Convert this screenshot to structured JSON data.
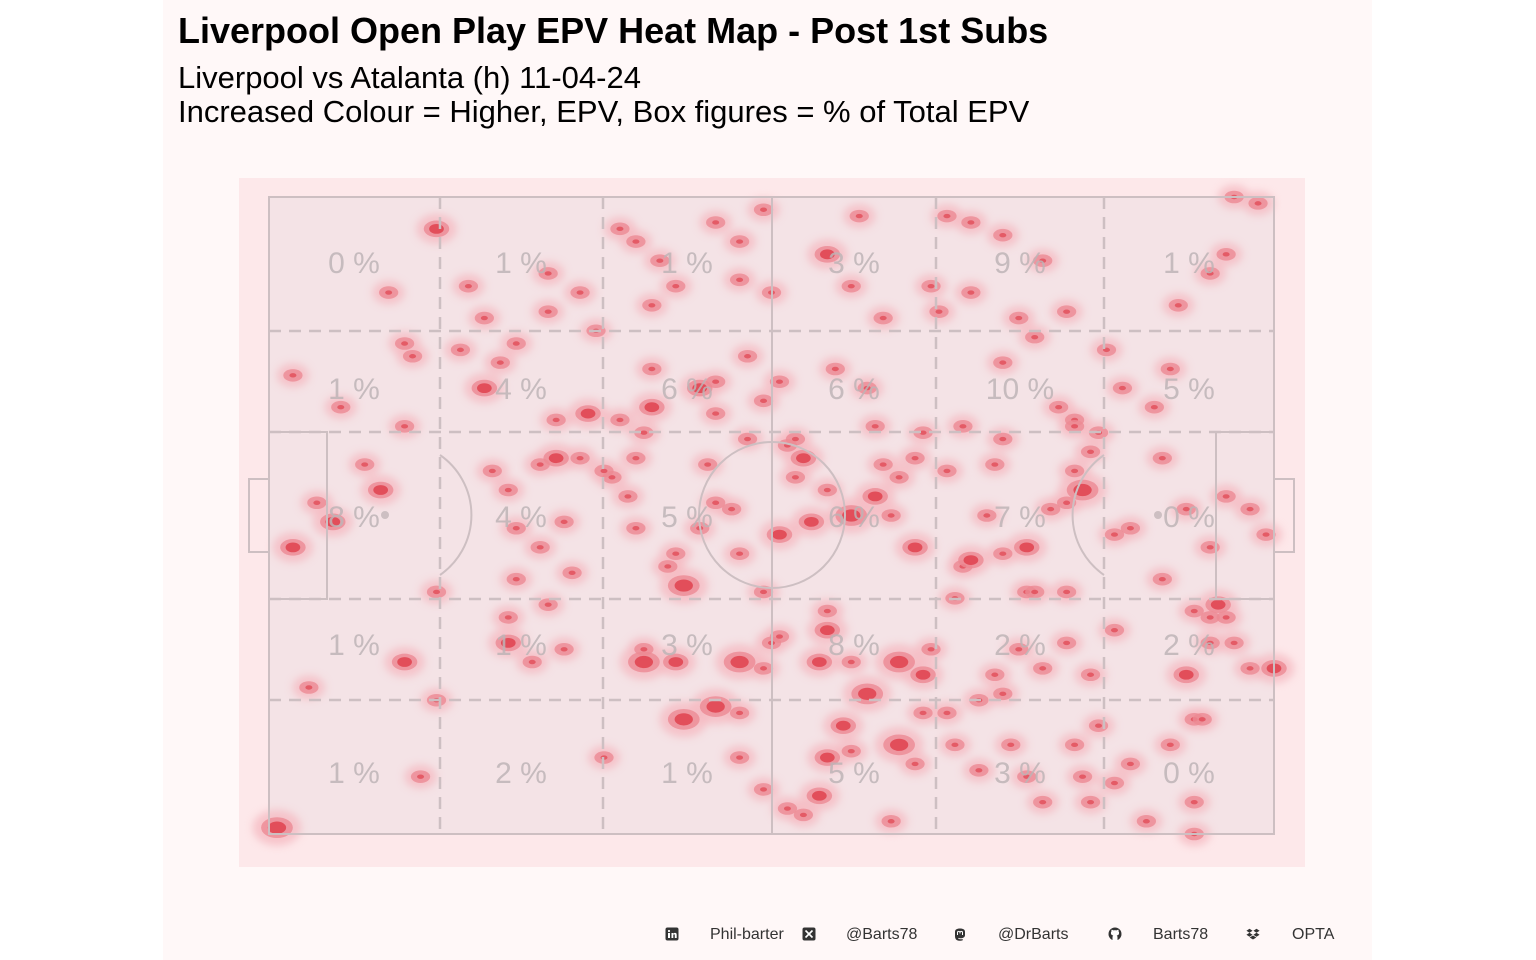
{
  "title": "Liverpool Open Play EPV Heat Map - Post 1st Subs",
  "subtitle_line1": "Liverpool vs Atalanta (h) 11-04-24",
  "subtitle_line2": "Increased Colour = Higher, EPV, Box figures = % of Total EPV",
  "colors": {
    "panel_bg": "#fff8f8",
    "pitch_bg": "#fde8ea",
    "zone_fill": "#f4e3e6",
    "lines": "#cdbfc2",
    "heat_low": "#f6b8c0",
    "heat_mid": "#ec8a93",
    "heat_high": "#e0424f",
    "label": "#bdb4b6"
  },
  "footer": {
    "linkedin_icon": "linkedin-icon",
    "linkedin": "Phil-barter",
    "x_icon": "x-icon",
    "x": "@Barts78",
    "mastodon_icon": "mastodon-icon",
    "mastodon": "@DrBarts",
    "github_icon": "github-icon",
    "github": "Barts78",
    "dropbox_icon": "dropbox-icon",
    "data_source": "OPTA"
  },
  "chart_data": {
    "type": "heatmap",
    "title": "Liverpool Open Play EPV Heat Map - Post 1st Subs",
    "value_unit": "% of Total EPV",
    "zone_columns": 6,
    "zone_rows": 5,
    "zone_labels": [
      [
        "0 %",
        "1 %",
        "1 %",
        "3 %",
        "9 %",
        "1 %"
      ],
      [
        "1 %",
        "4 %",
        "6 %",
        "6 %",
        "10 %",
        "5 %"
      ],
      [
        "8 %",
        "4 %",
        "5 %",
        "6 %",
        "7 %",
        "0 %"
      ],
      [
        "1 %",
        "1 %",
        "3 %",
        "8 %",
        "2 %",
        "2 %"
      ],
      [
        "1 %",
        "2 %",
        "1 %",
        "5 %",
        "3 %",
        "0 %"
      ]
    ],
    "zone_values": [
      [
        0,
        1,
        1,
        3,
        9,
        1
      ],
      [
        1,
        4,
        6,
        6,
        10,
        5
      ],
      [
        8,
        4,
        5,
        6,
        7,
        0
      ],
      [
        1,
        1,
        3,
        8,
        2,
        2
      ],
      [
        1,
        2,
        1,
        5,
        3,
        0
      ]
    ],
    "x_range": [
      0,
      100
    ],
    "y_range": [
      0,
      100
    ],
    "points": [
      [
        1,
        99,
        3
      ],
      [
        5,
        77,
        1
      ],
      [
        17,
        73,
        2
      ],
      [
        30,
        70,
        2
      ],
      [
        33,
        73,
        1
      ],
      [
        35,
        64,
        1
      ],
      [
        37,
        71,
        1
      ],
      [
        21,
        79,
        1
      ],
      [
        21,
        62,
        1
      ],
      [
        19,
        91,
        1
      ],
      [
        42,
        88,
        1
      ],
      [
        47,
        71,
        1
      ],
      [
        47,
        73,
        3
      ],
      [
        52,
        82,
        3
      ],
      [
        56,
        80,
        3
      ],
      [
        51,
        73,
        2
      ],
      [
        52,
        61,
        3
      ],
      [
        59,
        81,
        1
      ],
      [
        62,
        74,
        1
      ],
      [
        59,
        88,
        1
      ],
      [
        62,
        93,
        1
      ],
      [
        65,
        96,
        1
      ],
      [
        67,
        97,
        1
      ],
      [
        59,
        73,
        3
      ],
      [
        63,
        70,
        1
      ],
      [
        69,
        94,
        2
      ],
      [
        70,
        88,
        2
      ],
      [
        72,
        83,
        2
      ],
      [
        75,
        78,
        3
      ],
      [
        79,
        86,
        3
      ],
      [
        81,
        89,
        1
      ],
      [
        73,
        87,
        1
      ],
      [
        78,
        98,
        1
      ],
      [
        86,
        86,
        1
      ],
      [
        83,
        71,
        1
      ],
      [
        86,
        63,
        1
      ],
      [
        81,
        55,
        2
      ],
      [
        87,
        58,
        1
      ],
      [
        92,
        56,
        1
      ],
      [
        95,
        62,
        1
      ],
      [
        95,
        55,
        2
      ],
      [
        100,
        70,
        1
      ],
      [
        100,
        62,
        1
      ],
      [
        103,
        75,
        1
      ],
      [
        106,
        68,
        1
      ],
      [
        106,
        53,
        1
      ],
      [
        112,
        41,
        1
      ],
      [
        112,
        60,
        1
      ],
      [
        115,
        75,
        2
      ],
      [
        108,
        52,
        1
      ],
      [
        102,
        46,
        3
      ],
      [
        101,
        43,
        1
      ],
      [
        111,
        33,
        1
      ],
      [
        105,
        24,
        1
      ],
      [
        100,
        18,
        1
      ],
      [
        97,
        10,
        1
      ],
      [
        92,
        6,
        1
      ],
      [
        88,
        4,
        1
      ],
      [
        85,
        3,
        1
      ],
      [
        83,
        14,
        1
      ],
      [
        92,
        26,
        1
      ],
      [
        116,
        95,
        1
      ],
      [
        113,
        86,
        1
      ],
      [
        116,
        82,
        1
      ],
      [
        108,
        89,
        1
      ],
      [
        110,
        98,
        1
      ],
      [
        116,
        100,
        1
      ],
      [
        3,
        55,
        2
      ],
      [
        8,
        51,
        2
      ],
      [
        6,
        48,
        1
      ],
      [
        14,
        46,
        2
      ],
      [
        12,
        42,
        1
      ],
      [
        17,
        36,
        1
      ],
      [
        9,
        33,
        1
      ],
      [
        3,
        28,
        1
      ],
      [
        15,
        15,
        1
      ],
      [
        17,
        23,
        1
      ],
      [
        18,
        25,
        1
      ],
      [
        27,
        30,
        2
      ],
      [
        21,
        5,
        2
      ],
      [
        25,
        14,
        1
      ],
      [
        27,
        19,
        1
      ],
      [
        24,
        24,
        1
      ],
      [
        29,
        26,
        1
      ],
      [
        30,
        46,
        1
      ],
      [
        36,
        35,
        1
      ],
      [
        40,
        34,
        2
      ],
      [
        39,
        41,
        1
      ],
      [
        36,
        41,
        2
      ],
      [
        43,
        44,
        1
      ],
      [
        46,
        41,
        1
      ],
      [
        42,
        43,
        1
      ],
      [
        28,
        43,
        1
      ],
      [
        31,
        23,
        1
      ],
      [
        35,
        18,
        1
      ],
      [
        35,
        12,
        1
      ],
      [
        39,
        15,
        1
      ],
      [
        48,
        17,
        1
      ],
      [
        51,
        14,
        1
      ],
      [
        59,
        13,
        1
      ],
      [
        63,
        15,
        1
      ],
      [
        59,
        7,
        1
      ],
      [
        56,
        4,
        1
      ],
      [
        62,
        2,
        1
      ],
      [
        70,
        9,
        2
      ],
      [
        74,
        3,
        1
      ],
      [
        73,
        14,
        1
      ],
      [
        77,
        19,
        1
      ],
      [
        84,
        18,
        1
      ],
      [
        88,
        15,
        1
      ],
      [
        94,
        19,
        1
      ],
      [
        96,
        22,
        1
      ],
      [
        99,
        33,
        1
      ],
      [
        101,
        35,
        1
      ],
      [
        107,
        30,
        1
      ],
      [
        113,
        27,
        1
      ],
      [
        114,
        17,
        1
      ],
      [
        118,
        12,
        1
      ],
      [
        120,
        9,
        1
      ],
      [
        121,
        0,
        1
      ],
      [
        124,
        1,
        1
      ],
      [
        119,
        64,
        2
      ],
      [
        120,
        66,
        1
      ],
      [
        121,
        70,
        1
      ],
      [
        117,
        82,
        1
      ],
      [
        116,
        65,
        1
      ],
      [
        118,
        55,
        1
      ],
      [
        123,
        49,
        1
      ],
      [
        125,
        53,
        1
      ],
      [
        126,
        74,
        2
      ],
      [
        123,
        74,
        1
      ],
      [
        115,
        49,
        1
      ],
      [
        120,
        47,
        1
      ],
      [
        118,
        66,
        1
      ],
      [
        118,
        70,
        1
      ],
      [
        73,
        50,
        3
      ],
      [
        78,
        50,
        1
      ],
      [
        76,
        47,
        2
      ],
      [
        70,
        46,
        1
      ],
      [
        66,
        44,
        1
      ],
      [
        68,
        51,
        2
      ],
      [
        64,
        53,
        2
      ],
      [
        58,
        49,
        1
      ],
      [
        54,
        52,
        1
      ],
      [
        51,
        56,
        1
      ],
      [
        50,
        58,
        1
      ],
      [
        46,
        52,
        1
      ],
      [
        62,
        62,
        1
      ],
      [
        59,
        56,
        1
      ],
      [
        56,
        48,
        1
      ],
      [
        45,
        47,
        1
      ],
      [
        48,
        33,
        2
      ],
      [
        47,
        37,
        1
      ],
      [
        44,
        35,
        1
      ],
      [
        54,
        30,
        2
      ],
      [
        56,
        29,
        1
      ],
      [
        48,
        27,
        1
      ],
      [
        41,
        21,
        1
      ],
      [
        49,
        10,
        1
      ],
      [
        46,
        7,
        1
      ],
      [
        44,
        5,
        1
      ],
      [
        34,
        42,
        1
      ],
      [
        31,
        52,
        1
      ],
      [
        34,
        55,
        1
      ],
      [
        30,
        66,
        1
      ],
      [
        31,
        60,
        1
      ],
      [
        37,
        51,
        1
      ],
      [
        38,
        59,
        1
      ],
      [
        64,
        69,
        1
      ],
      [
        70,
        65,
        1
      ],
      [
        70,
        68,
        2
      ],
      [
        69,
        73,
        2
      ],
      [
        73,
        73,
        1
      ],
      [
        79,
        73,
        3
      ],
      [
        82,
        75,
        2
      ],
      [
        82,
        81,
        1
      ],
      [
        85,
        81,
        1
      ],
      [
        89,
        79,
        1
      ],
      [
        92,
        78,
        1
      ],
      [
        91,
        75,
        1
      ],
      [
        94,
        71,
        1
      ],
      [
        97,
        74,
        1
      ],
      [
        96,
        62,
        1
      ],
      [
        88,
        57,
        2
      ],
      [
        90,
        50,
        1
      ],
      [
        98,
        49,
        1
      ],
      [
        100,
        48,
        1
      ],
      [
        103,
        40,
        1
      ],
      [
        104,
        37,
        1
      ],
      [
        101,
        36,
        1
      ],
      [
        92,
        38,
        1
      ],
      [
        91,
        42,
        1
      ],
      [
        87,
        36,
        1
      ],
      [
        85,
        43,
        1
      ],
      [
        77,
        42,
        1
      ],
      [
        79,
        44,
        1
      ],
      [
        81,
        41,
        1
      ],
      [
        82,
        37,
        1
      ],
      [
        76,
        36,
        1
      ],
      [
        75,
        30,
        1
      ],
      [
        71,
        27,
        1
      ],
      [
        64,
        29,
        1
      ],
      [
        60,
        25,
        1
      ],
      [
        56,
        34,
        1
      ],
      [
        62,
        32,
        1
      ],
      [
        65,
        39,
        1
      ],
      [
        67,
        41,
        2
      ],
      [
        66,
        38,
        1
      ],
      [
        60,
        38,
        1
      ],
      [
        55,
        42,
        1
      ],
      [
        89,
        90,
        1
      ],
      [
        93,
        86,
        1
      ],
      [
        95,
        91,
        1
      ],
      [
        101,
        86,
        1
      ],
      [
        104,
        83,
        1
      ],
      [
        97,
        95,
        1
      ],
      [
        103,
        95,
        1
      ],
      [
        106,
        92,
        1
      ],
      [
        102,
        91,
        1
      ]
    ]
  }
}
